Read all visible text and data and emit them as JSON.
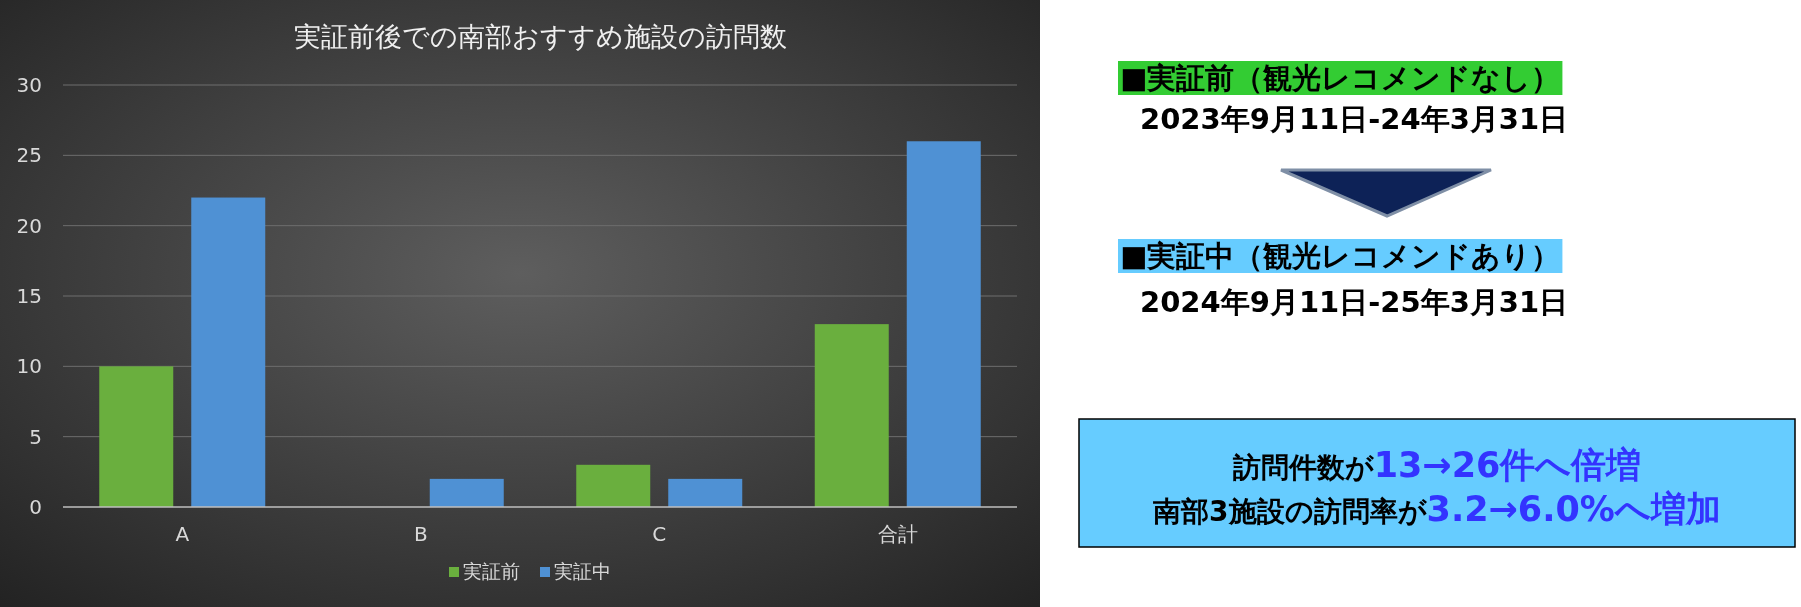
{
  "chart_data": [
    {
      "type": "bar",
      "title": "実証前後での南部おすすめ施設の訪問数",
      "categories": [
        "A",
        "B",
        "C",
        "合計"
      ],
      "series": [
        {
          "name": "実証前",
          "color": "#6aaf3e",
          "values": [
            10,
            0,
            3,
            13
          ]
        },
        {
          "name": "実証中",
          "color": "#4f91d4",
          "values": [
            22,
            2,
            2,
            26
          ]
        }
      ],
      "ylim": [
        0,
        30
      ],
      "yticks": [
        0,
        5,
        10,
        15,
        20,
        25,
        30
      ],
      "grid": "y",
      "legend": "bottom"
    },
    {
      "type": "other",
      "annotations": [
        "■実証前（観光レコメンドなし）",
        "2023年9月11日-24年3月31日",
        "■実証中（観光レコメンドあり）",
        "2024年9月11日-25年3月31日",
        "訪問件数が",
        "13→26件へ倍増",
        "南部3施設の訪問率が",
        "3.2→6.0%へ増加"
      ]
    }
  ]
}
